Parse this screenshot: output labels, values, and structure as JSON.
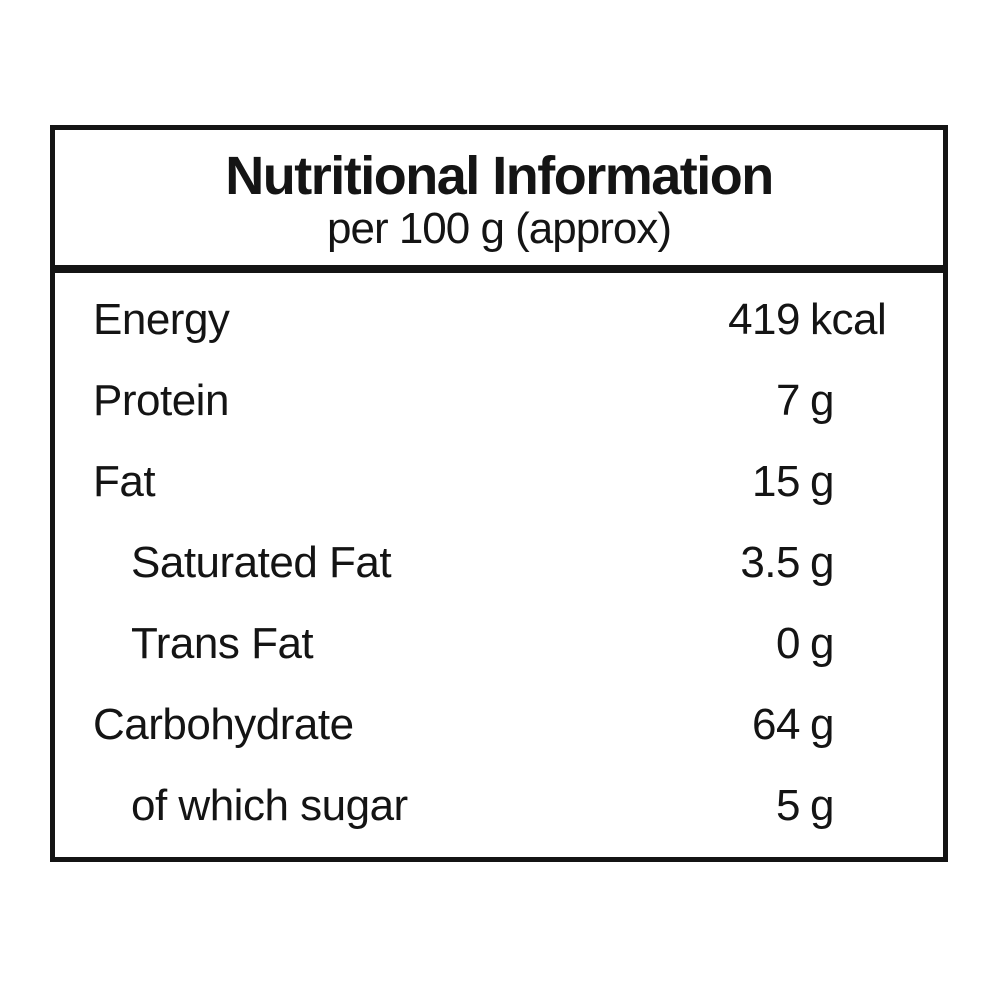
{
  "label": {
    "title": "Nutritional Information",
    "subtitle": "per 100 g (approx)"
  },
  "colors": {
    "text": "#141414",
    "border": "#141414",
    "background": "#ffffff"
  },
  "table": {
    "rows": [
      {
        "label": "Energy",
        "value": "419",
        "unit": "kcal",
        "indent": false
      },
      {
        "label": "Protein",
        "value": "7",
        "unit": "g",
        "indent": false
      },
      {
        "label": "Fat",
        "value": "15",
        "unit": "g",
        "indent": false
      },
      {
        "label": "Saturated Fat",
        "value": "3.5",
        "unit": "g",
        "indent": true
      },
      {
        "label": "Trans Fat",
        "value": "0",
        "unit": "g",
        "indent": true
      },
      {
        "label": "Carbohydrate",
        "value": "64",
        "unit": "g",
        "indent": false
      },
      {
        "label": "of which sugar",
        "value": "5",
        "unit": "g",
        "indent": true
      }
    ]
  }
}
